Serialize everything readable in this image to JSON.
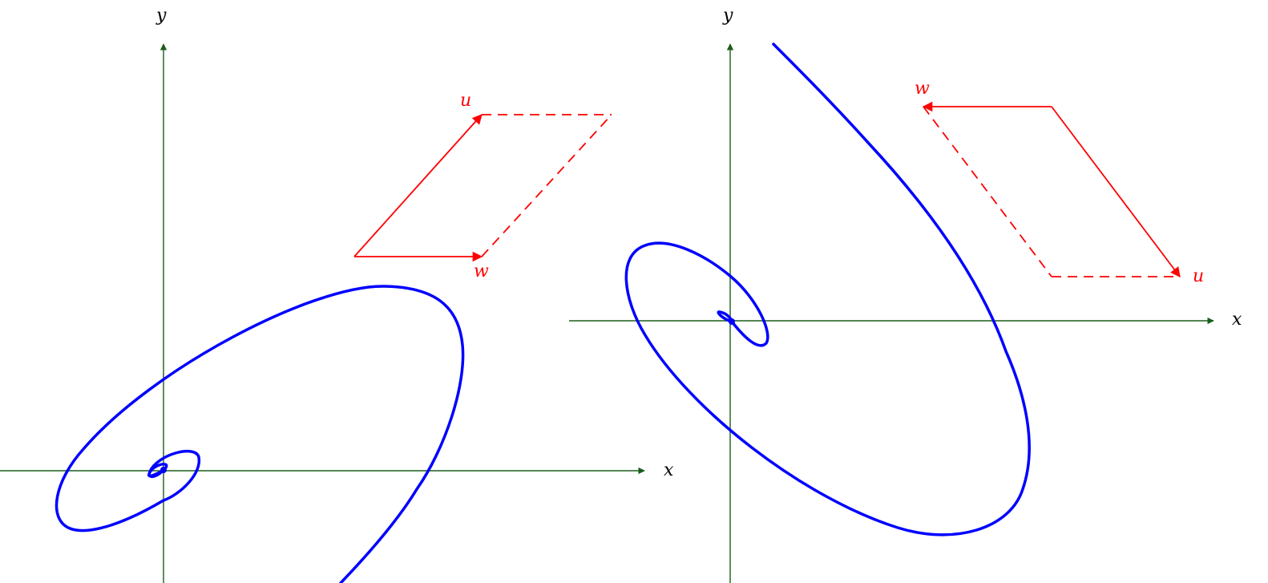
{
  "panels": [
    {
      "name": "left",
      "axes": {
        "x_label": "x",
        "y_label": "y"
      },
      "vectors": {
        "u_label": "u",
        "w_label": "w"
      }
    },
    {
      "name": "right",
      "axes": {
        "x_label": "x",
        "y_label": "y"
      },
      "vectors": {
        "u_label": "u",
        "w_label": "w"
      }
    }
  ],
  "colors": {
    "axis": "#1a5e1a",
    "curve": "#0000ff",
    "vectors": "#ff0000",
    "background": "#ffffff"
  }
}
